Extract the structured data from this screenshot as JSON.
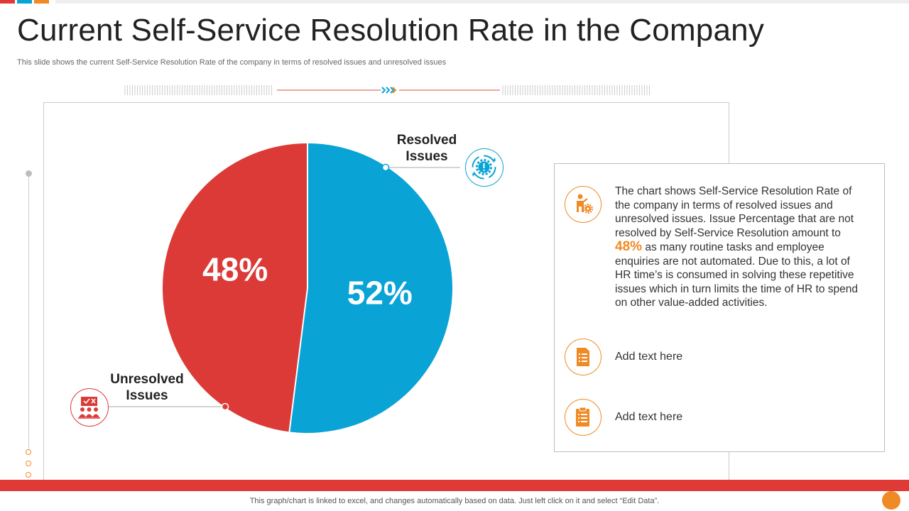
{
  "title": "Current Self-Service Resolution Rate in the Company",
  "subtitle": "This slide shows the current Self-Service Resolution Rate of the company in terms of resolved issues and unresolved issues",
  "colors": {
    "resolved": "#0aa3d6",
    "unresolved": "#dc3a37",
    "accent": "#f08a24",
    "divider": "#e04b3c"
  },
  "chart_data": {
    "type": "pie",
    "categories": [
      "Resolved Issues",
      "Unresolved Issues"
    ],
    "values": [
      52,
      48
    ],
    "value_labels": [
      "52%",
      "48%"
    ],
    "colors": [
      "#0aa3d6",
      "#dc3a37"
    ],
    "title": "",
    "legend": "none"
  },
  "labels": {
    "resolved_line1": "Resolved",
    "resolved_line2": "Issues",
    "unresolved_line1": "Unresolved",
    "unresolved_line2": "Issues"
  },
  "icons": {
    "resolved": "gear-cycle-icon",
    "unresolved": "team-checklist-icon",
    "info": "person-gear-icon",
    "item1": "document-list-icon",
    "item2": "clipboard-list-icon"
  },
  "info": {
    "text_before": "The chart shows Self-Service Resolution Rate of the company in terms of resolved issues and unresolved issues. Issue Percentage that are not resolved by Self-Service Resolution amount to",
    "highlight": "48%",
    "text_after": "as many routine tasks and employee enquiries are not automated. Due to this, a lot of HR time’s is consumed in solving these repetitive issues which in turn limits the time of HR to spend on other value-added activities.",
    "item1": "Add text here",
    "item2": "Add text here"
  },
  "footer": "This graph/chart is linked to excel,  and changes automatically based on data. Just left click on it and select “Edit Data”."
}
